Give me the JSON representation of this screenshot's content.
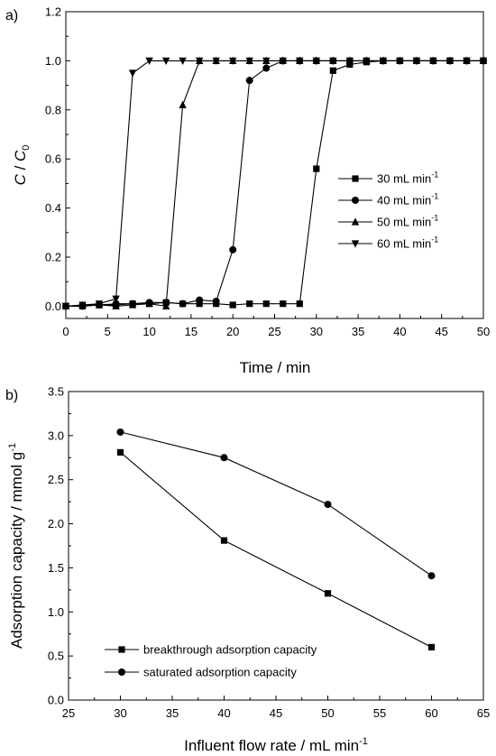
{
  "chart_data": [
    {
      "type": "line",
      "panel_label": "a)",
      "xlabel": "Time / min",
      "ylabel": "C / C0",
      "ylabel_parts": {
        "c": "C",
        "sep": " / ",
        "c0": "C",
        "sub": "0"
      },
      "xlim": [
        0,
        50
      ],
      "ylim": [
        -0.05,
        1.2
      ],
      "xticks": [
        "0",
        "5",
        "10",
        "15",
        "20",
        "25",
        "30",
        "35",
        "40",
        "45",
        "50"
      ],
      "yticks": [
        "0.0",
        "0.2",
        "0.4",
        "0.6",
        "0.8",
        "1.0",
        "1.2"
      ],
      "grid": false,
      "legend_position": "right-middle",
      "series": [
        {
          "name": "30 mL min-1",
          "label_main": "30 mL min",
          "label_sup": "-1",
          "marker": "square",
          "x": [
            0,
            2,
            4,
            6,
            8,
            10,
            12,
            14,
            16,
            18,
            20,
            22,
            24,
            26,
            28,
            30,
            32,
            34,
            36,
            38,
            40,
            42,
            44,
            46,
            48,
            50
          ],
          "y": [
            0.0,
            0.0,
            0.005,
            0.005,
            0.01,
            0.01,
            0.015,
            0.01,
            0.01,
            0.01,
            0.005,
            0.01,
            0.01,
            0.01,
            0.01,
            0.56,
            0.96,
            0.985,
            0.995,
            1.0,
            1.0,
            1.0,
            1.0,
            1.0,
            1.0,
            1.0
          ]
        },
        {
          "name": "40 mL min-1",
          "label_main": "40 mL min",
          "label_sup": "-1",
          "marker": "circle",
          "x": [
            0,
            2,
            4,
            6,
            8,
            10,
            12,
            14,
            16,
            18,
            20,
            22,
            24,
            26,
            28,
            30,
            32,
            34,
            36,
            38,
            40,
            42,
            44,
            46,
            48,
            50
          ],
          "y": [
            0.0,
            0.0,
            0.005,
            0.01,
            0.01,
            0.015,
            0.015,
            0.01,
            0.025,
            0.02,
            0.23,
            0.92,
            0.97,
            1.0,
            1.0,
            1.0,
            1.0,
            1.0,
            1.0,
            1.0,
            1.0,
            1.0,
            1.0,
            1.0,
            1.0,
            1.0
          ]
        },
        {
          "name": "50 mL min-1",
          "label_main": "50 mL min",
          "label_sup": "-1",
          "marker": "triangle-up",
          "x": [
            0,
            2,
            4,
            6,
            8,
            10,
            12,
            14,
            16,
            18,
            20,
            22,
            24,
            26,
            28,
            30,
            32,
            34,
            36,
            38,
            40,
            42,
            44,
            46,
            48,
            50
          ],
          "y": [
            0.0,
            0.005,
            0.005,
            0.0,
            0.005,
            0.01,
            0.0,
            0.82,
            1.0,
            1.0,
            1.0,
            1.0,
            1.0,
            1.0,
            1.0,
            1.0,
            1.0,
            1.0,
            1.0,
            1.0,
            1.0,
            1.0,
            1.0,
            1.0,
            1.0,
            1.0
          ]
        },
        {
          "name": "60 mL min-1",
          "label_main": "60 mL min",
          "label_sup": "-1",
          "marker": "triangle-down",
          "x": [
            0,
            2,
            4,
            6,
            8,
            10,
            12,
            14,
            16,
            18,
            20,
            22,
            24,
            26,
            28,
            30,
            32,
            34,
            36,
            38,
            40,
            42,
            44,
            46,
            48,
            50
          ],
          "y": [
            0.0,
            0.005,
            0.01,
            0.03,
            0.95,
            1.0,
            1.0,
            1.0,
            1.0,
            1.0,
            1.0,
            1.0,
            1.0,
            1.0,
            1.0,
            1.0,
            1.0,
            1.0,
            1.0,
            1.0,
            1.0,
            1.0,
            1.0,
            1.0,
            1.0,
            1.0
          ]
        }
      ]
    },
    {
      "type": "line",
      "panel_label": "b)",
      "xlabel": "Influent flow rate / mL min-1",
      "xlabel_main": "Influent flow rate / mL min",
      "xlabel_sup": "-1",
      "ylabel": "Adsorption capacity / mmol g-1",
      "ylabel_main": "Adsorption capacity / mmol g",
      "ylabel_sup": "-1",
      "xlim": [
        25,
        65
      ],
      "ylim": [
        0,
        3.5
      ],
      "xticks": [
        "25",
        "30",
        "35",
        "40",
        "45",
        "50",
        "55",
        "60",
        "65"
      ],
      "yticks": [
        "0.0",
        "0.5",
        "1.0",
        "1.5",
        "2.0",
        "2.5",
        "3.0",
        "3.5"
      ],
      "grid": false,
      "legend_position": "bottom-left",
      "series": [
        {
          "name": "breakthrough adsorption capacity",
          "marker": "square",
          "x": [
            30,
            40,
            50,
            60
          ],
          "y": [
            2.81,
            1.81,
            1.21,
            0.6
          ]
        },
        {
          "name": "saturated adsorption capacity",
          "marker": "circle",
          "x": [
            30,
            40,
            50,
            60
          ],
          "y": [
            3.04,
            2.75,
            2.22,
            1.41
          ]
        }
      ]
    }
  ]
}
